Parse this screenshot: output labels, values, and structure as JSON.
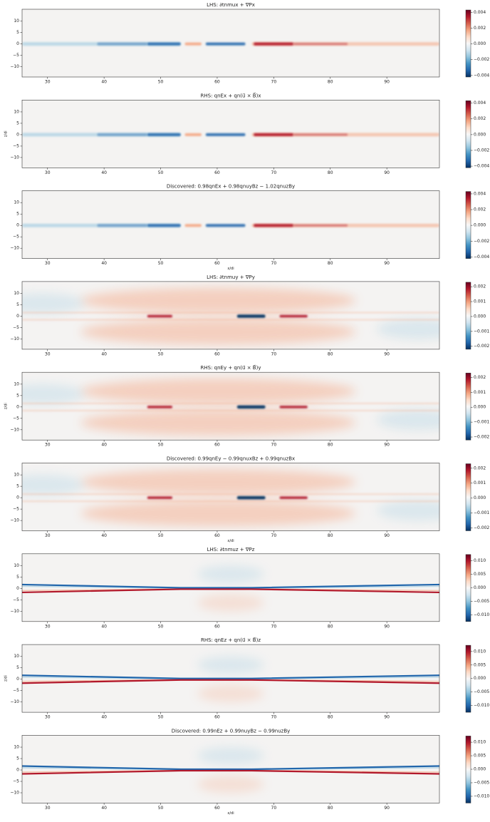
{
  "chart_data": [
    {
      "type": "heatmap",
      "title": "LHS: ∂tnmux + ∇Px",
      "xlim": [
        25.5,
        99.3
      ],
      "ylim": [
        -14.5,
        15.2
      ],
      "xticks": [
        30,
        40,
        50,
        60,
        70,
        80,
        90
      ],
      "yticks": [
        {
          "value": -10,
          "label": "−10"
        },
        {
          "value": -5,
          "label": "−5"
        },
        0,
        5,
        10
      ],
      "colormap": "RdBu_r",
      "clim": [
        -0.0042,
        0.0043
      ],
      "cticks": [
        {
          "value": -0.004,
          "label": "−0.004"
        },
        {
          "value": -0.002,
          "label": "−0.002"
        },
        {
          "value": 0,
          "label": "0.000"
        },
        0.002,
        0.004
      ]
    },
    {
      "type": "heatmap",
      "title": "RHS: qnEx + qn(u⃗ × B⃗)x",
      "ylabel": "z/di",
      "xlim": [
        25.5,
        99.3
      ],
      "ylim": [
        -14.5,
        15.2
      ],
      "xticks": [
        30,
        40,
        50,
        60,
        70,
        80,
        90
      ],
      "yticks": [
        {
          "value": -10,
          "label": "−10"
        },
        {
          "value": -5,
          "label": "−5"
        },
        0,
        5,
        10
      ],
      "colormap": "RdBu_r",
      "clim": [
        -0.0042,
        0.0043
      ],
      "cticks": [
        {
          "value": -0.004,
          "label": "−0.004"
        },
        {
          "value": -0.002,
          "label": "−0.002"
        },
        {
          "value": 0,
          "label": "0.000"
        },
        0.002,
        0.004
      ]
    },
    {
      "type": "heatmap",
      "title": "Discovered: 0.98qnEx + 0.98qnuyBz − 1.02qnuzBy",
      "xlabel": "x/di",
      "xlim": [
        25.5,
        99.3
      ],
      "ylim": [
        -14.5,
        15.2
      ],
      "xticks": [
        30,
        40,
        50,
        60,
        70,
        80,
        90
      ],
      "yticks": [
        {
          "value": -10,
          "label": "−10"
        },
        {
          "value": -5,
          "label": "−5"
        },
        0,
        5,
        10
      ],
      "colormap": "RdBu_r",
      "clim": [
        -0.0042,
        0.0043
      ],
      "cticks": [
        {
          "value": -0.004,
          "label": "−0.004"
        },
        {
          "value": -0.002,
          "label": "−0.002"
        },
        {
          "value": 0,
          "label": "0.000"
        },
        0.002,
        0.004
      ]
    },
    {
      "type": "heatmap",
      "title": "LHS: ∂tnmuy + ∇Py",
      "xlim": [
        25.5,
        99.3
      ],
      "ylim": [
        -14.5,
        15.2
      ],
      "xticks": [
        30,
        40,
        50,
        60,
        70,
        80,
        90
      ],
      "yticks": [
        {
          "value": -10,
          "label": "−10"
        },
        {
          "value": -5,
          "label": "−5"
        },
        0,
        5,
        10
      ],
      "colormap": "RdBu_r",
      "clim": [
        -0.0022,
        0.0023
      ],
      "cticks": [
        {
          "value": -0.002,
          "label": "−0.002"
        },
        {
          "value": -0.001,
          "label": "−0.001"
        },
        {
          "value": 0,
          "label": "0.000"
        },
        0.001,
        0.002
      ]
    },
    {
      "type": "heatmap",
      "title": "RHS: qnEy + qn(u⃗ × B⃗)y",
      "ylabel": "z/di",
      "xlim": [
        25.5,
        99.3
      ],
      "ylim": [
        -14.5,
        15.2
      ],
      "xticks": [
        30,
        40,
        50,
        60,
        70,
        80,
        90
      ],
      "yticks": [
        {
          "value": -10,
          "label": "−10"
        },
        {
          "value": -5,
          "label": "−5"
        },
        0,
        5,
        10
      ],
      "colormap": "RdBu_r",
      "clim": [
        -0.0022,
        0.0023
      ],
      "cticks": [
        {
          "value": -0.002,
          "label": "−0.002"
        },
        {
          "value": -0.001,
          "label": "−0.001"
        },
        {
          "value": 0,
          "label": "0.000"
        },
        0.001,
        0.002
      ]
    },
    {
      "type": "heatmap",
      "title": "Discovered: 0.99qnEy − 0.99qnuxBz + 0.99qnuzBx",
      "xlabel": "x/di",
      "xlim": [
        25.5,
        99.3
      ],
      "ylim": [
        -14.5,
        15.2
      ],
      "xticks": [
        30,
        40,
        50,
        60,
        70,
        80,
        90
      ],
      "yticks": [
        {
          "value": -10,
          "label": "−10"
        },
        {
          "value": -5,
          "label": "−5"
        },
        0,
        5,
        10
      ],
      "colormap": "RdBu_r",
      "clim": [
        -0.0022,
        0.0023
      ],
      "cticks": [
        {
          "value": -0.002,
          "label": "−0.002"
        },
        {
          "value": -0.001,
          "label": "−0.001"
        },
        {
          "value": 0,
          "label": "0.000"
        },
        0.001,
        0.002
      ]
    },
    {
      "type": "heatmap",
      "title": "LHS: ∂tnmuz + ∇Pz",
      "xlim": [
        25.5,
        99.3
      ],
      "ylim": [
        -14.5,
        15.2
      ],
      "xticks": [
        30,
        40,
        50,
        60,
        70,
        80,
        90
      ],
      "yticks": [
        {
          "value": -10,
          "label": "−10"
        },
        {
          "value": -5,
          "label": "−5"
        },
        0,
        5,
        10
      ],
      "colormap": "RdBu_r",
      "clim": [
        -0.0125,
        0.0123
      ],
      "cticks": [
        {
          "value": -0.01,
          "label": "−0.010"
        },
        {
          "value": -0.005,
          "label": "−0.005"
        },
        {
          "value": 0,
          "label": "0.000"
        },
        0.005,
        {
          "value": 0.01,
          "label": "0.010"
        }
      ]
    },
    {
      "type": "heatmap",
      "title": "RHS: qnEz + qn(u⃗ × B⃗)z",
      "ylabel": "z/di",
      "xlim": [
        25.5,
        99.3
      ],
      "ylim": [
        -14.5,
        15.2
      ],
      "xticks": [
        30,
        40,
        50,
        60,
        70,
        80,
        90
      ],
      "yticks": [
        {
          "value": -10,
          "label": "−10"
        },
        {
          "value": -5,
          "label": "−5"
        },
        0,
        5,
        10
      ],
      "colormap": "RdBu_r",
      "clim": [
        -0.0125,
        0.0123
      ],
      "cticks": [
        {
          "value": -0.01,
          "label": "−0.010"
        },
        {
          "value": -0.005,
          "label": "−0.005"
        },
        {
          "value": 0,
          "label": "0.000"
        },
        0.005,
        {
          "value": 0.01,
          "label": "0.010"
        }
      ]
    },
    {
      "type": "heatmap",
      "title": "Discovered: 0.99nEz + 0.99nuyBz − 0.99nuzBy",
      "xlabel": "x/di",
      "xlim": [
        25.5,
        99.3
      ],
      "ylim": [
        -14.5,
        15.2
      ],
      "xticks": [
        30,
        40,
        50,
        60,
        70,
        80,
        90
      ],
      "yticks": [
        {
          "value": -10,
          "label": "−10"
        },
        {
          "value": -5,
          "label": "−5"
        },
        0,
        5,
        10
      ],
      "colormap": "RdBu_r",
      "clim": [
        -0.0125,
        0.0123
      ],
      "cticks": [
        {
          "value": -0.01,
          "label": "−0.010"
        },
        {
          "value": -0.005,
          "label": "−0.005"
        },
        {
          "value": 0,
          "label": "0.000"
        },
        0.005,
        {
          "value": 0.01,
          "label": "0.010"
        }
      ]
    }
  ]
}
